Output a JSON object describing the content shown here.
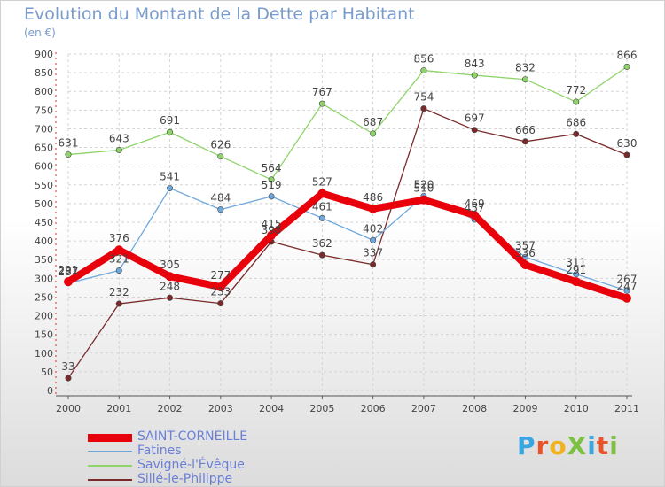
{
  "title": "Evolution du Montant de la Dette par Habitant",
  "unit": "(en €)",
  "logo": {
    "text": "ProXiti",
    "colors": [
      "#3aa6e0",
      "#e8532b",
      "#f2b21e",
      "#7cc142",
      "#3aa6e0",
      "#e8532b",
      "#7cc142"
    ]
  },
  "chart_data": {
    "type": "line",
    "title": "Evolution du Montant de la Dette par Habitant",
    "subtitle": "(en €)",
    "xlabel": "",
    "ylabel": "",
    "categories": [
      "2000",
      "2001",
      "2002",
      "2003",
      "2004",
      "2005",
      "2006",
      "2007",
      "2008",
      "2009",
      "2010",
      "2011"
    ],
    "ylim": [
      0,
      900
    ],
    "yticks": [
      0,
      50,
      100,
      150,
      200,
      250,
      300,
      350,
      400,
      450,
      500,
      550,
      600,
      650,
      700,
      750,
      800,
      850,
      900
    ],
    "grid": true,
    "legend_position": "bottom-left",
    "series": [
      {
        "name": "SAINT-CORNEILLE",
        "color": "#e8000b",
        "values": [
          291,
          376,
          305,
          277,
          415,
          527,
          486,
          510,
          469,
          336,
          291,
          247
        ]
      },
      {
        "name": "Fatines",
        "color": "#6fa8dc",
        "values": [
          287,
          321,
          541,
          484,
          519,
          461,
          402,
          520,
          457,
          357,
          311,
          267
        ]
      },
      {
        "name": "Savigné-l'Évêque",
        "color": "#8fd46a",
        "values": [
          631,
          643,
          691,
          626,
          564,
          767,
          687,
          856,
          843,
          832,
          772,
          866
        ]
      },
      {
        "name": "Sillé-le-Philippe",
        "color": "#7a2a2a",
        "values": [
          33,
          232,
          248,
          233,
          398,
          362,
          337,
          754,
          697,
          666,
          686,
          630
        ]
      }
    ]
  }
}
